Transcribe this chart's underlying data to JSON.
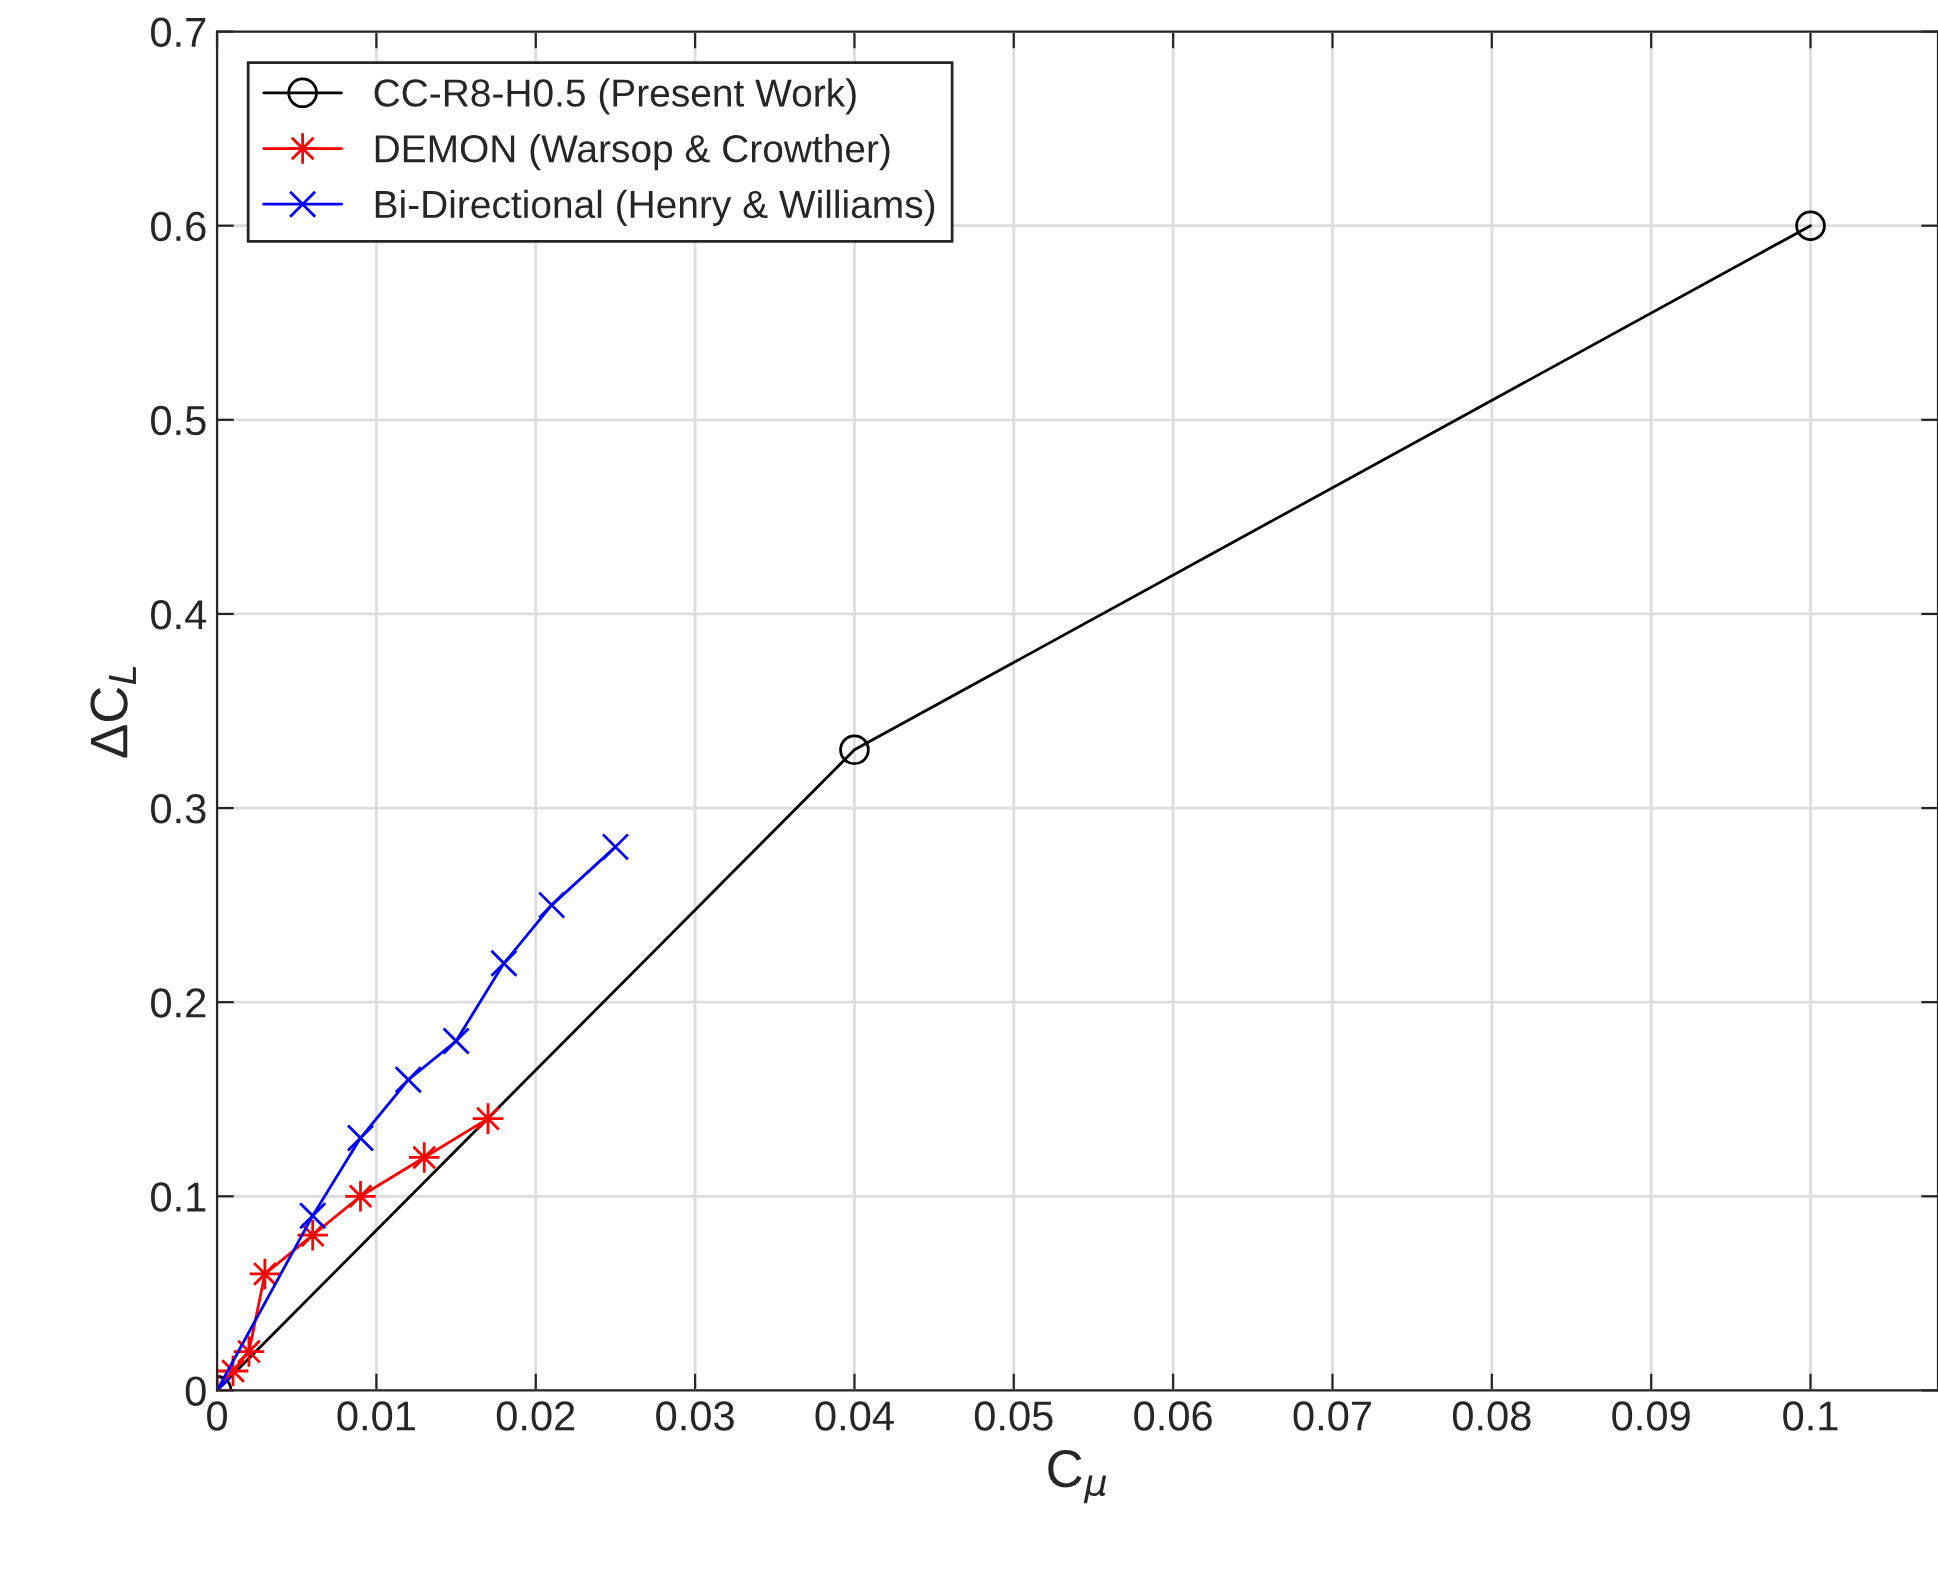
{
  "chart_data": {
    "type": "line",
    "xlabel": "C$_{μ}$",
    "ylabel": "ΔC$_{L}$",
    "xlim": [
      0,
      0.108
    ],
    "xticks": [
      0,
      0.01,
      0.02,
      0.03,
      0.04,
      0.05,
      0.06,
      0.07,
      0.08,
      0.09,
      0.1
    ],
    "ylim": [
      0,
      0.7
    ],
    "yticks": [
      0,
      0.1,
      0.2,
      0.3,
      0.4,
      0.5,
      0.6,
      0.7
    ],
    "grid": true,
    "legend": "top left",
    "series": [
      {
        "name": "CC-R8-H0.5 (Present Work)",
        "color": "#000000",
        "marker": "circle",
        "x": [
          0,
          0.04,
          0.1
        ],
        "values": [
          0,
          0.33,
          0.6
        ]
      },
      {
        "name": "DEMON (Warsop & Crowther)",
        "color": "#ff0000",
        "marker": "star",
        "x": [
          0,
          0.001,
          0.002,
          0.003,
          0.006,
          0.009,
          0.013,
          0.017
        ],
        "values": [
          0,
          0.01,
          0.02,
          0.06,
          0.08,
          0.1,
          0.12,
          0.14
        ]
      },
      {
        "name": "Bi-Directional (Henry & Williams)",
        "color": "#0000ff",
        "marker": "cross",
        "x": [
          0,
          0.006,
          0.009,
          0.012,
          0.015,
          0.018,
          0.021,
          0.025
        ],
        "values": [
          0,
          0.09,
          0.13,
          0.16,
          0.18,
          0.22,
          0.25,
          0.28
        ]
      }
    ]
  }
}
